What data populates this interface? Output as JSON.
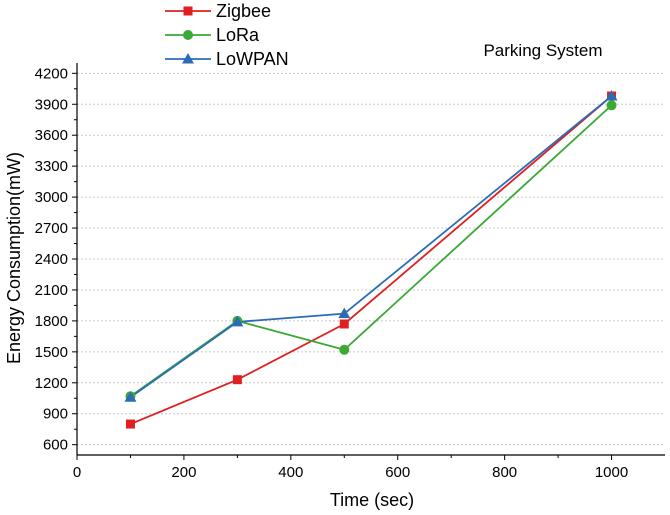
{
  "chart_data": {
    "type": "line",
    "title": "",
    "annotation": "Parking System",
    "xlabel": "Time (sec)",
    "ylabel": "Energy Consumption(mW)",
    "xlim": [
      0,
      1100
    ],
    "ylim": [
      500,
      4300
    ],
    "xticks": [
      0,
      200,
      400,
      600,
      800,
      1000
    ],
    "yticks": [
      600,
      900,
      1200,
      1500,
      1800,
      2100,
      2400,
      2700,
      3000,
      3300,
      3600,
      3900,
      4200
    ],
    "grid": "horizontal-dashed",
    "legend_position": "top-left",
    "x": [
      100,
      300,
      500,
      1000
    ],
    "series": [
      {
        "name": "Zigbee",
        "color": "#e02020",
        "marker": "square",
        "values": [
          800,
          1230,
          1770,
          3980
        ]
      },
      {
        "name": "LoRa",
        "color": "#3aaa35",
        "marker": "circle",
        "values": [
          1070,
          1800,
          1520,
          3890
        ]
      },
      {
        "name": "LoWPAN",
        "color": "#2b6cb5",
        "marker": "triangle",
        "values": [
          1060,
          1790,
          1870,
          3980
        ]
      }
    ]
  }
}
